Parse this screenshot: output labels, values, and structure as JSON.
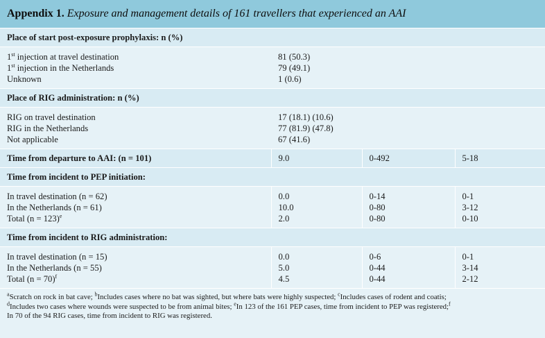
{
  "title": {
    "label": "Appendix 1.",
    "text": "Exposure and management details of 161 travellers that experienced an AAI"
  },
  "sections": [
    {
      "header": "Place of start post-exposure prophylaxis: n (%)",
      "rows": [
        {
          "label": "1st injection at travel destination",
          "sup": "st",
          "pre": "1",
          "post": " injection at travel destination",
          "value": "81 (50.3)"
        },
        {
          "label": "1st injection in the Netherlands",
          "sup": "st",
          "pre": "1",
          "post": " injection in the Netherlands",
          "value": "79 (49.1)"
        },
        {
          "label": "Unknown",
          "value": "1 (0.6)"
        }
      ]
    },
    {
      "header": "Place of RIG administration: n (%)",
      "rows": [
        {
          "label": "RIG on travel destination",
          "value": "17 (18.1) (10.6)"
        },
        {
          "label": "RIG in the Netherlands",
          "value": "77 (81.9) (47.8)"
        },
        {
          "label": "Not applicable",
          "value": "67 (41.6)"
        }
      ]
    },
    {
      "summary": {
        "label": "Time from departure to AAI: (n = 101)",
        "median": "9.0",
        "range": "0-492",
        "iqr": "5-18"
      }
    },
    {
      "header": "Time from incident to PEP initiation:",
      "rows": [
        {
          "label": "In travel destination (n = 62)",
          "median": "0.0",
          "range": "0-14",
          "iqr": "0-1"
        },
        {
          "label": "In the Netherlands (n = 61)",
          "median": "10.0",
          "range": "0-80",
          "iqr": "3-12"
        },
        {
          "label": "Total (n = 123)",
          "sup": "e",
          "median": "2.0",
          "range": "0-80",
          "iqr": "0-10"
        }
      ]
    },
    {
      "header": "Time from incident to RIG administration:",
      "rows": [
        {
          "label": "In travel destination (n = 15)",
          "median": "0.0",
          "range": "0-6",
          "iqr": "0-1"
        },
        {
          "label": "In the Netherlands (n = 55)",
          "median": "5.0",
          "range": "0-44",
          "iqr": "3-14"
        },
        {
          "label": "Total (n = 70)",
          "sup": "f",
          "median": "4.5",
          "range": "0-44",
          "iqr": "2-12"
        }
      ]
    }
  ],
  "footnotes": [
    {
      "mark": "a",
      "text": "Scratch on rock in bat cave; "
    },
    {
      "mark": "b",
      "text": "Includes cases where no bat was sighted, but where bats were highly suspected; "
    },
    {
      "mark": "c",
      "text": "Includes cases of rodent and coatis;"
    },
    {
      "mark": "d",
      "text": "Includes two cases where wounds were suspected to be from animal bites; "
    },
    {
      "mark": "e",
      "text": "In 123 of the 161 PEP cases, time from incident to PEP was registered;"
    },
    {
      "mark": "f",
      "text": "In 70 of the 94 RIG cases, time from incident to RIG was registered."
    }
  ]
}
